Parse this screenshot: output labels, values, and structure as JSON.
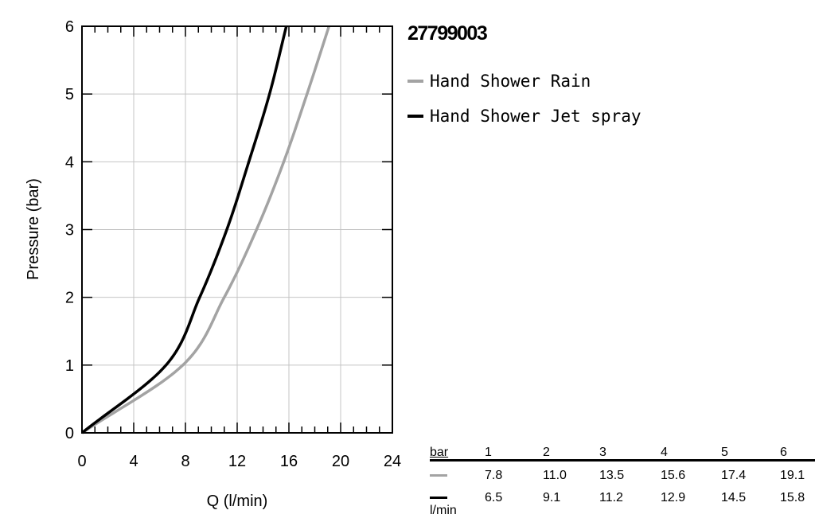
{
  "product_code": "27799003",
  "legend": [
    {
      "label": "Hand Shower Rain",
      "color": "#a3a3a3"
    },
    {
      "label": "Hand Shower Jet spray",
      "color": "#000000"
    }
  ],
  "chart_data": {
    "type": "line",
    "title": "",
    "xlabel": "Q (l/min)",
    "ylabel": "Pressure (bar)",
    "xlim": [
      0,
      24
    ],
    "ylim": [
      0,
      6
    ],
    "xticks": [
      0,
      4,
      8,
      12,
      16,
      20,
      24
    ],
    "yticks": [
      0,
      1,
      2,
      3,
      4,
      5,
      6
    ],
    "grid": true,
    "legend_position": "right",
    "series": [
      {
        "name": "Hand Shower Rain",
        "color": "#a3a3a3",
        "x": [
          0,
          7.8,
          11.0,
          13.5,
          15.6,
          17.4,
          19.1
        ],
        "y": [
          0,
          1,
          2,
          3,
          4,
          5,
          6
        ]
      },
      {
        "name": "Hand Shower Jet spray",
        "color": "#000000",
        "x": [
          0,
          6.5,
          9.1,
          11.2,
          12.9,
          14.5,
          15.8
        ],
        "y": [
          0,
          1,
          2,
          3,
          4,
          5,
          6
        ]
      }
    ]
  },
  "table": {
    "header_label": "bar",
    "unit_label": "l/min",
    "columns": [
      "1",
      "2",
      "3",
      "4",
      "5",
      "6"
    ],
    "rows": [
      {
        "series": "Hand Shower Rain",
        "color": "#a3a3a3",
        "values": [
          "7.8",
          "11.0",
          "13.5",
          "15.6",
          "17.4",
          "19.1"
        ]
      },
      {
        "series": "Hand Shower Jet spray",
        "color": "#000000",
        "values": [
          "6.5",
          "9.1",
          "11.2",
          "12.9",
          "14.5",
          "15.8"
        ]
      }
    ]
  }
}
